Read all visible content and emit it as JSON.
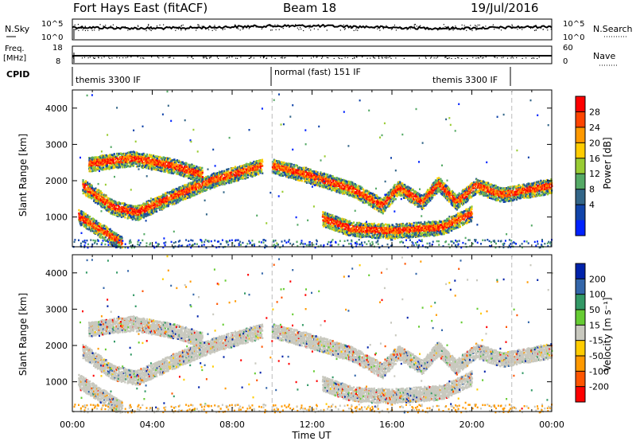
{
  "header": {
    "left": "Fort Hays East (fitACF)",
    "center": "Beam 18",
    "right": "19/Jul/2016"
  },
  "top_panels": {
    "nsky": {
      "label": "N.Sky",
      "right_label": "N.Search",
      "ticks_left": [
        "10^5",
        "10^0"
      ],
      "ticks_right": [
        "10^5",
        "10^0"
      ]
    },
    "freq": {
      "label_1": "Freq.",
      "label_2": "[MHz]",
      "right_label": "Nave",
      "ticks_left": [
        "18",
        "8"
      ],
      "ticks_right": [
        "60",
        "0"
      ]
    },
    "cpid": {
      "label": "CPID",
      "segments": [
        {
          "label": "themis 3300 IF",
          "start": 0,
          "end": 10
        },
        {
          "label": "normal (fast) 151 IF",
          "start": 10,
          "end": 22
        },
        {
          "label": "themis 3300 IF",
          "start": 22,
          "end": 24
        }
      ]
    }
  },
  "chart_data": [
    {
      "type": "heatmap",
      "title": "",
      "ylabel": "Slant Range [km]",
      "xlabel": "",
      "xlim": [
        0,
        24
      ],
      "ylim": [
        180,
        4500
      ],
      "y_ticks": [
        1000,
        2000,
        3000,
        4000
      ],
      "colorbar": {
        "label": "Power [dB]",
        "ticks": [
          "28",
          "24",
          "20",
          "16",
          "12",
          "8",
          "4"
        ],
        "colors": [
          "#ff0000",
          "#ff4400",
          "#ff9900",
          "#ffcc00",
          "#99cc33",
          "#55aa66",
          "#336688",
          "#1144aa",
          "#0022ff"
        ]
      },
      "bands": [
        {
          "name": "lower-arc",
          "points": [
            [
              0.5,
              1900
            ],
            [
              2.0,
              1300
            ],
            [
              3.2,
              1150
            ],
            [
              5.0,
              1600
            ],
            [
              7.0,
              2050
            ],
            [
              9.5,
              2450
            ]
          ]
        },
        {
          "name": "upper-arc",
          "points": [
            [
              0.8,
              2500
            ],
            [
              3.0,
              2650
            ],
            [
              5.0,
              2450
            ],
            [
              6.5,
              2200
            ]
          ]
        },
        {
          "name": "decay-line",
          "points": [
            [
              0.3,
              1050
            ],
            [
              2.5,
              300
            ]
          ]
        },
        {
          "name": "post-midnight",
          "points": [
            [
              10.0,
              2450
            ],
            [
              12.0,
              2150
            ],
            [
              14.0,
              1800
            ],
            [
              15.5,
              1350
            ],
            [
              16.3,
              1850
            ],
            [
              17.5,
              1450
            ],
            [
              18.3,
              1950
            ],
            [
              19.2,
              1450
            ],
            [
              20.2,
              1900
            ],
            [
              21.5,
              1650
            ],
            [
              24.0,
              1900
            ]
          ]
        },
        {
          "name": "lower-band",
          "points": [
            [
              12.5,
              1000
            ],
            [
              14.0,
              700
            ],
            [
              16.0,
              650
            ],
            [
              18.5,
              750
            ],
            [
              20.0,
              1150
            ]
          ]
        }
      ]
    },
    {
      "type": "heatmap",
      "title": "",
      "ylabel": "Slant Range [km]",
      "xlabel": "Time UT",
      "xlim": [
        0,
        24
      ],
      "ylim": [
        180,
        4500
      ],
      "y_ticks": [
        1000,
        2000,
        3000,
        4000
      ],
      "x_ticks": [
        "00:00",
        "04:00",
        "08:00",
        "12:00",
        "16:00",
        "20:00",
        "00:00"
      ],
      "colorbar": {
        "label": "Velocity [m s⁻¹]",
        "ticks": [
          "200",
          "100",
          "50",
          "15",
          "-15",
          "-50",
          "-100",
          "-200"
        ],
        "colors": [
          "#0022aa",
          "#3366aa",
          "#339966",
          "#66cc33",
          "#c8c8be",
          "#ffcc00",
          "#ff9900",
          "#ff5500",
          "#ff0000"
        ]
      }
    }
  ]
}
